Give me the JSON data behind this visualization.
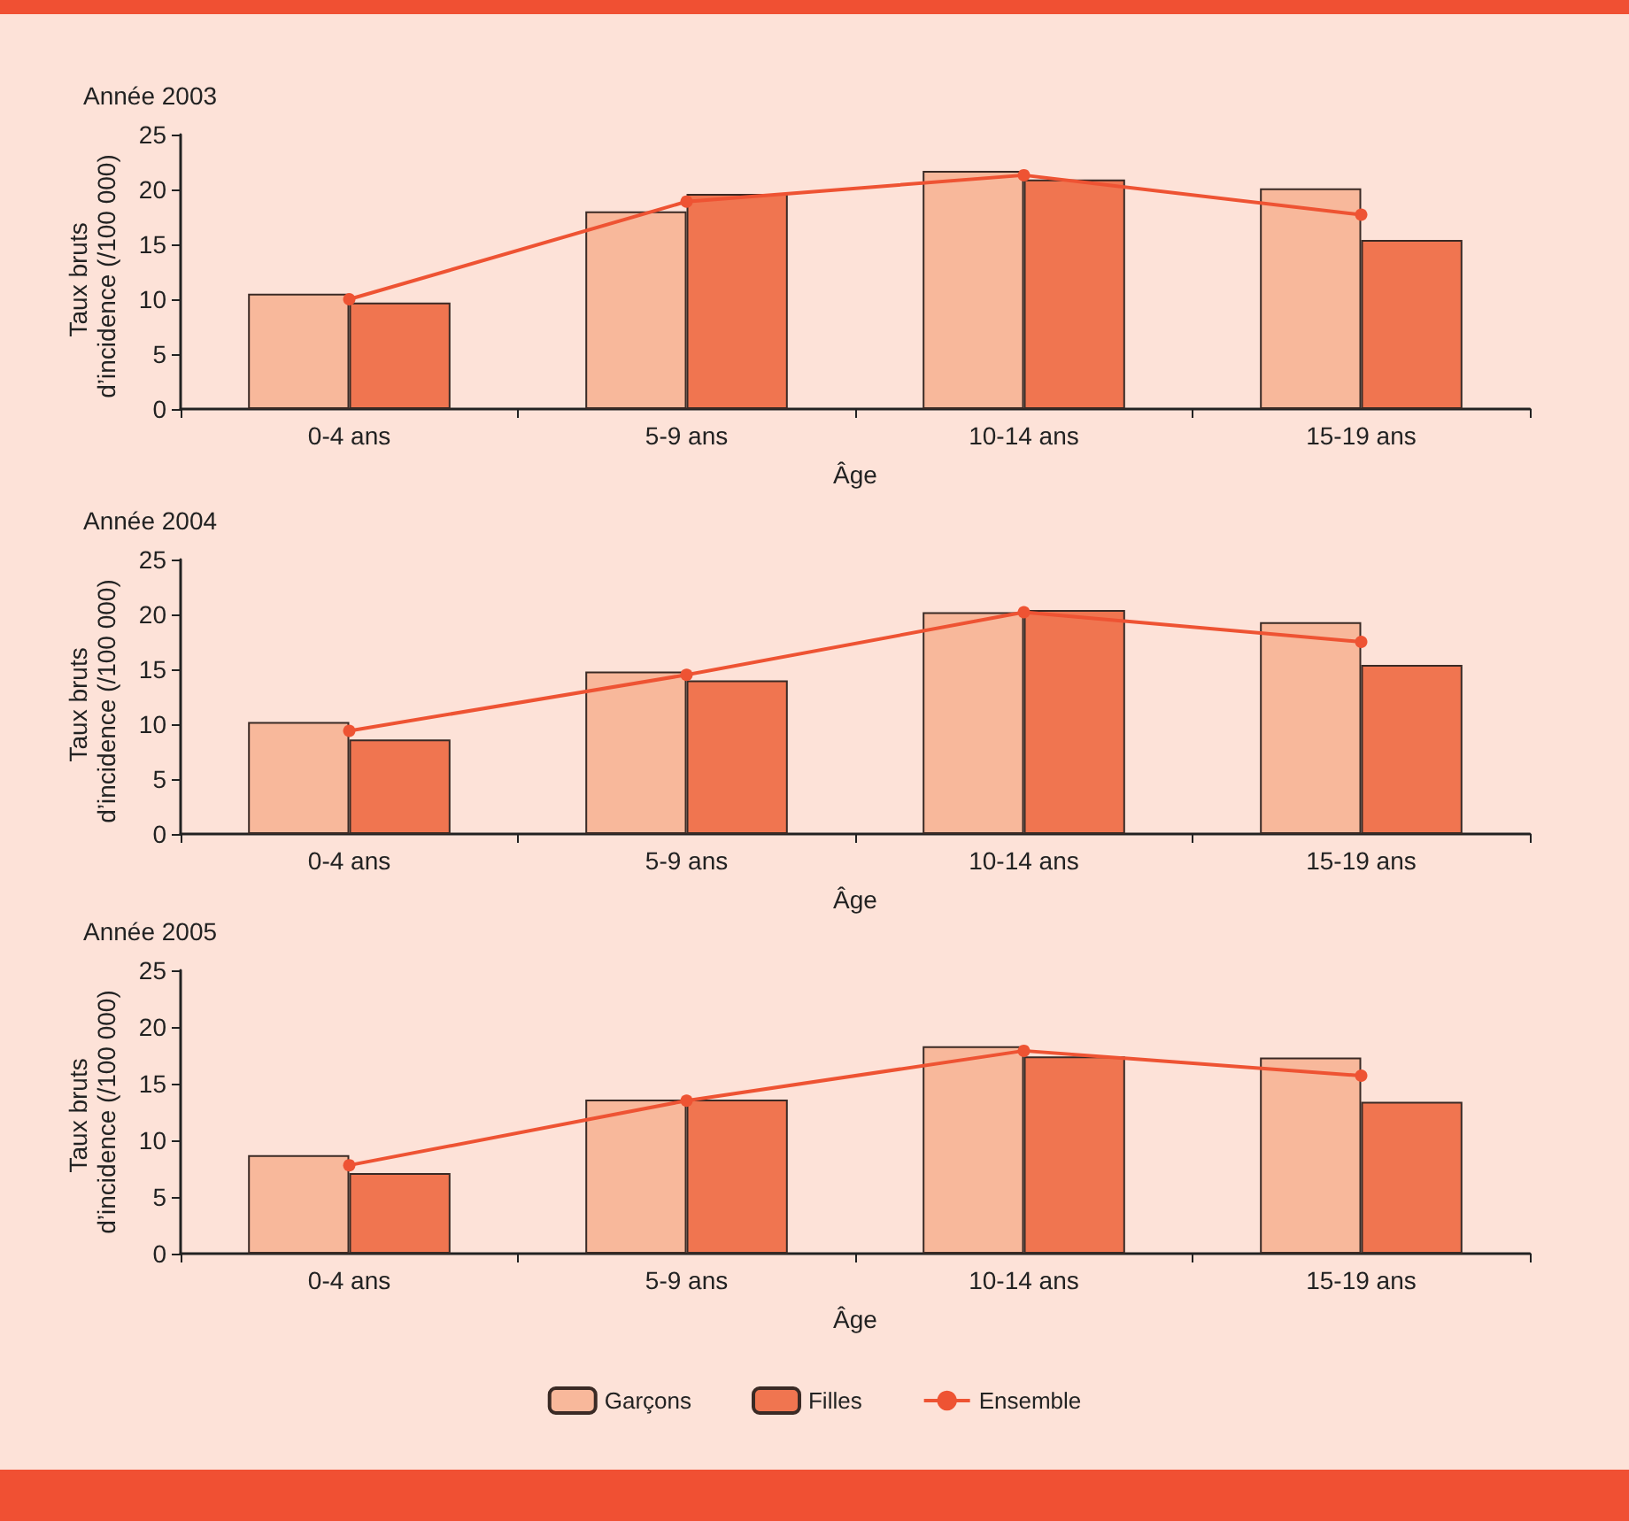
{
  "chart_data": [
    {
      "type": "bar",
      "title": "Année 2003",
      "xlabel": "Âge",
      "ylabel": "Taux bruts d’incidence (/100 000)",
      "categories": [
        "0-4 ans",
        "5-9 ans",
        "10-14 ans",
        "15-19 ans"
      ],
      "ylim": [
        0,
        25
      ],
      "yticks": [
        0,
        5,
        10,
        15,
        20,
        25
      ],
      "grid": false,
      "legend": false,
      "series": [
        {
          "color": "#f8b89b",
          "values": [
            10.5,
            18.0,
            21.7,
            20.1
          ]
        },
        {
          "color": "#f07550",
          "values": [
            9.7,
            19.6,
            20.9,
            15.4
          ]
        },
        {
          "type": "line",
          "color": "#ee5333",
          "marker": "circle",
          "values": [
            10.0,
            18.9,
            21.3,
            17.7
          ]
        }
      ]
    },
    {
      "type": "bar",
      "title": "Année 2004",
      "xlabel": "Âge",
      "ylabel": "Taux bruts d’incidence (/100 000)",
      "categories": [
        "0-4 ans",
        "5-9 ans",
        "10-14 ans",
        "15-19 ans"
      ],
      "ylim": [
        0,
        25
      ],
      "yticks": [
        0,
        5,
        10,
        15,
        20,
        25
      ],
      "grid": false,
      "legend": false,
      "series": [
        {
          "color": "#f8b89b",
          "values": [
            10.2,
            14.8,
            20.2,
            19.3
          ]
        },
        {
          "color": "#f07550",
          "values": [
            8.6,
            14.0,
            20.4,
            15.4
          ]
        },
        {
          "type": "line",
          "color": "#ee5333",
          "marker": "circle",
          "values": [
            9.4,
            14.5,
            20.2,
            17.5
          ]
        }
      ]
    },
    {
      "type": "bar",
      "title": "Année 2005",
      "xlabel": "Âge",
      "ylabel": "Taux bruts d’incidence (/100 000)",
      "categories": [
        "0-4 ans",
        "5-9 ans",
        "10-14 ans",
        "15-19 ans"
      ],
      "ylim": [
        0,
        25
      ],
      "yticks": [
        0,
        5,
        10,
        15,
        20,
        25
      ],
      "grid": false,
      "legend": "bottom",
      "series": [
        {
          "name": "Garçons",
          "color": "#f8b89b",
          "values": [
            8.7,
            13.6,
            18.3,
            17.3
          ]
        },
        {
          "name": "Filles",
          "color": "#f07550",
          "values": [
            7.1,
            13.6,
            17.4,
            13.4
          ]
        },
        {
          "name": "Ensemble",
          "type": "line",
          "color": "#ee5333",
          "marker": "circle",
          "values": [
            7.8,
            13.5,
            17.9,
            15.7
          ]
        }
      ]
    }
  ]
}
